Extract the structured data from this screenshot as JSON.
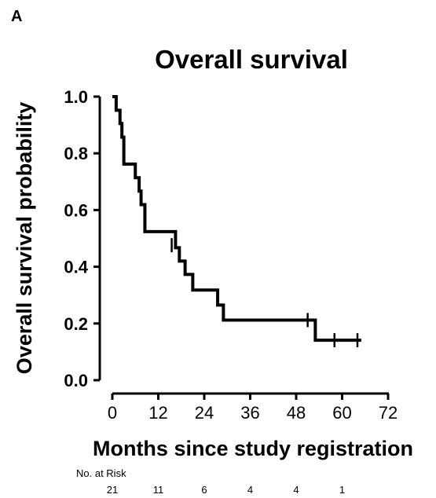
{
  "panel_label": "A",
  "chart_data": {
    "type": "line",
    "subtype": "kaplan-meier",
    "title": "Overall survival",
    "xlabel": "Months since study registration",
    "ylabel": "Overall survival probability",
    "xlim": [
      0,
      72
    ],
    "ylim": [
      0,
      1
    ],
    "xticks": [
      0,
      12,
      24,
      36,
      48,
      60,
      72
    ],
    "yticks": [
      0.0,
      0.2,
      0.4,
      0.6,
      0.8,
      1.0
    ],
    "xtick_labels": [
      "0",
      "12",
      "24",
      "36",
      "48",
      "60",
      "72"
    ],
    "ytick_labels": [
      "0.0",
      "0.2",
      "0.4",
      "0.6",
      "0.8",
      "1.0"
    ],
    "grid": false,
    "series": [
      {
        "steps": [
          [
            0,
            1.0
          ],
          [
            1.0,
            0.952
          ],
          [
            2.0,
            0.905
          ],
          [
            2.5,
            0.857
          ],
          [
            3.0,
            0.762
          ],
          [
            6.0,
            0.714
          ],
          [
            7.0,
            0.667
          ],
          [
            7.5,
            0.619
          ],
          [
            8.5,
            0.524
          ],
          [
            16.5,
            0.467
          ],
          [
            17.5,
            0.42
          ],
          [
            19.0,
            0.373
          ],
          [
            21.0,
            0.318
          ],
          [
            27.5,
            0.265
          ],
          [
            29.0,
            0.212
          ],
          [
            53.0,
            0.141
          ],
          [
            65.0,
            0.141
          ]
        ],
        "censored": [
          [
            15.5,
            0.476
          ],
          [
            51.0,
            0.212
          ],
          [
            58.0,
            0.141
          ],
          [
            64.0,
            0.141
          ]
        ]
      }
    ],
    "risk_table": {
      "label": "No. at Risk",
      "x": [
        0,
        12,
        24,
        36,
        48,
        60
      ],
      "counts": [
        "21",
        "11",
        "6",
        "4",
        "4",
        "1"
      ]
    }
  }
}
